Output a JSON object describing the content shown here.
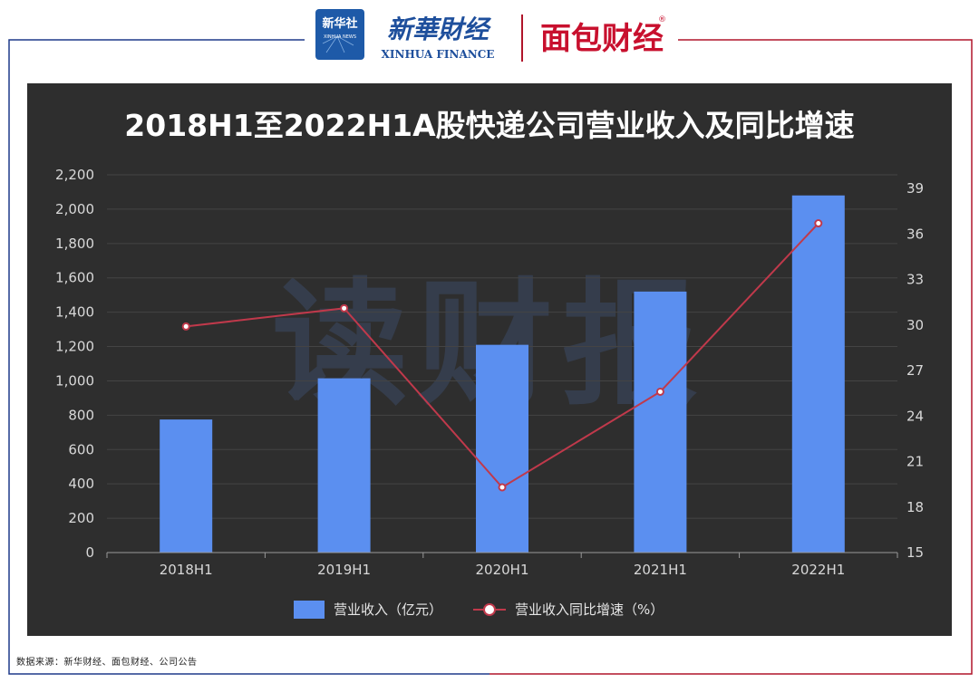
{
  "header": {
    "xinhua_news_logo": "新华社",
    "xinhua_news_sub": "XINHUA NEWS",
    "xinhua_finance_cn": "新華財经",
    "xinhua_finance_en": "XINHUA FINANCE",
    "mianbao_logo": "面包财经",
    "registered_mark": "®"
  },
  "colors": {
    "panel_bg": "#2e2e2e",
    "bar": "#5b8ff0",
    "line": "#c0394b",
    "frame_left": "#1f3a8a",
    "frame_right": "#b0152a"
  },
  "watermark": "读财报",
  "chart_data": {
    "type": "bar+line",
    "title": "2018H1至2022H1A股快递公司营业收入及同比增速",
    "categories": [
      "2018H1",
      "2019H1",
      "2020H1",
      "2021H1",
      "2022H1"
    ],
    "series": [
      {
        "name": "营业收入（亿元）",
        "type": "bar",
        "axis": "left",
        "values": [
          775,
          1015,
          1210,
          1520,
          2080
        ]
      },
      {
        "name": "营业收入同比增速（%）",
        "type": "line",
        "axis": "right",
        "values": [
          29.9,
          31.1,
          19.3,
          25.6,
          36.7
        ]
      }
    ],
    "y_left": {
      "min": 0,
      "max": 2200,
      "ticks": [
        "0",
        "200",
        "400",
        "600",
        "800",
        "1,000",
        "1,200",
        "1,400",
        "1,600",
        "1,800",
        "2,000",
        "2,200"
      ]
    },
    "y_right": {
      "min": 15,
      "max": 39,
      "ticks": [
        "15",
        "18",
        "21",
        "24",
        "27",
        "30",
        "33",
        "36",
        "39"
      ]
    },
    "grid": true,
    "legend_position": "bottom-center"
  },
  "source_note": "数据来源：新华财经、面包财经、公司公告"
}
